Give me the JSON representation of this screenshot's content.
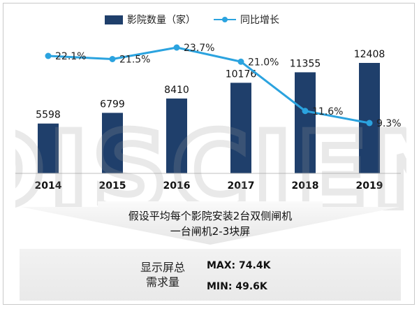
{
  "chart_data": {
    "type": "bar+line",
    "categories": [
      "2014",
      "2015",
      "2016",
      "2017",
      "2018",
      "2019"
    ],
    "series": [
      {
        "name": "影院数量（家）",
        "type": "bar",
        "values": [
          5598,
          6799,
          8410,
          10176,
          11355,
          12408
        ]
      },
      {
        "name": "同比增长",
        "type": "line",
        "values": [
          22.1,
          21.5,
          23.7,
          21.0,
          11.6,
          9.3
        ],
        "labels": [
          "22.1%",
          "21.5%",
          "23.7%",
          "21.0%",
          "11.6%",
          "9.3%"
        ]
      }
    ],
    "bar_color": "#1f3f6b",
    "line_color": "#2ba3df",
    "legend_position": "top",
    "grid": false
  },
  "callout": {
    "line1": "假设平均每个影院安装2台双侧闸机",
    "line2": "一台闸机2-3块屏"
  },
  "summary": {
    "label_line1": "显示屏总",
    "label_line2": "需求量",
    "max": "MAX: 74.4K",
    "min": "MIN: 49.6K"
  },
  "watermark": "DISCIEN"
}
